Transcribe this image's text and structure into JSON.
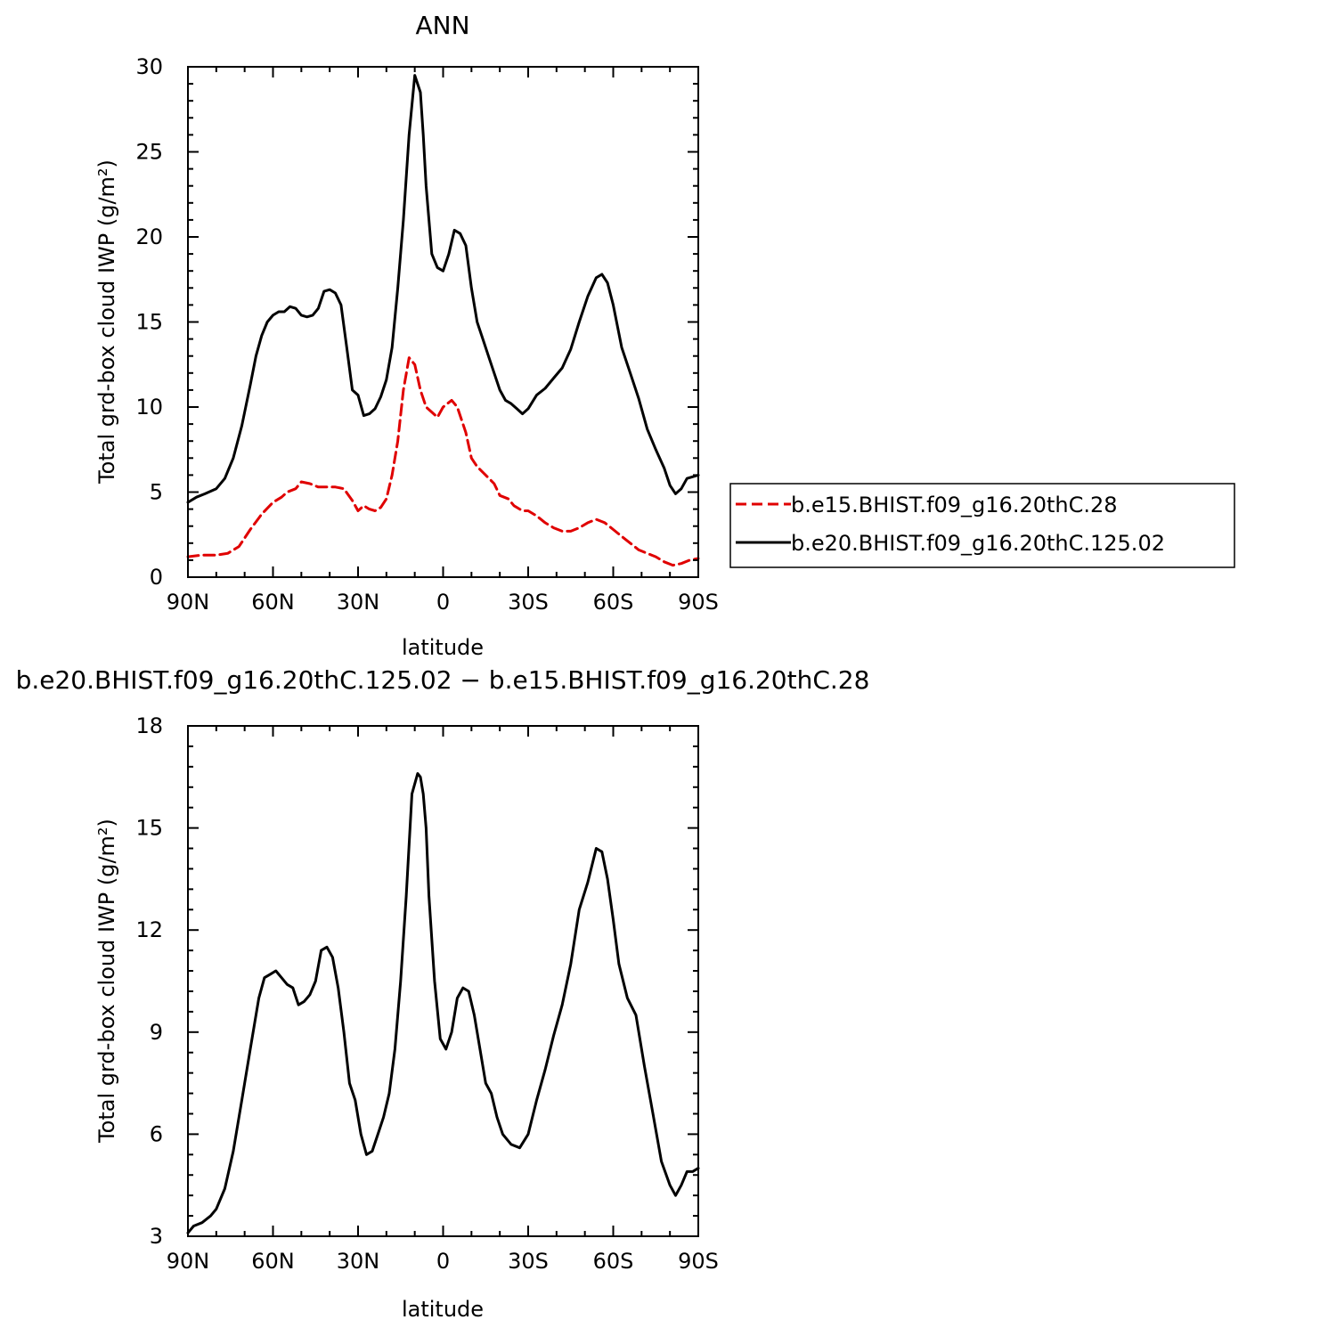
{
  "chart_data": [
    {
      "type": "line",
      "title": "ANN",
      "xlabel": "latitude",
      "ylabel": "Total grd-box cloud IWP (g/m²)",
      "xlim": [
        90,
        -90
      ],
      "ylim": [
        0,
        30
      ],
      "xticks": [
        90,
        60,
        30,
        0,
        -30,
        -60,
        -90
      ],
      "xtick_labels": [
        "90N",
        "60N",
        "30N",
        "0",
        "30S",
        "60S",
        "90S"
      ],
      "yticks": [
        0,
        5,
        10,
        15,
        20,
        25,
        30
      ],
      "ytick_labels": [
        "0",
        "5",
        "10",
        "15",
        "20",
        "25",
        "30"
      ],
      "legend_position": "right",
      "series": [
        {
          "name": "b.e15.BHIST.f09_g16.20thC.28",
          "color": "#e00000",
          "dash": true,
          "x": [
            90,
            85,
            80,
            76,
            72,
            68,
            64,
            60,
            57,
            55,
            52,
            50,
            47,
            44,
            41,
            38,
            35,
            32,
            30,
            28,
            26,
            24,
            22,
            20,
            18,
            16,
            14,
            12,
            10,
            8,
            6,
            4,
            2,
            0,
            -3,
            -5,
            -8,
            -10,
            -12,
            -15,
            -18,
            -20,
            -23,
            -25,
            -28,
            -30,
            -33,
            -36,
            -39,
            -42,
            -45,
            -48,
            -51,
            -54,
            -57,
            -60,
            -63,
            -66,
            -69,
            -72,
            -75,
            -78,
            -81,
            -84,
            -87,
            -90
          ],
          "y": [
            1.2,
            1.3,
            1.3,
            1.4,
            1.8,
            2.8,
            3.7,
            4.4,
            4.7,
            5.0,
            5.2,
            5.6,
            5.5,
            5.3,
            5.3,
            5.3,
            5.2,
            4.5,
            3.9,
            4.2,
            4.0,
            3.9,
            4.1,
            4.6,
            6.0,
            8.0,
            11.0,
            12.9,
            12.5,
            11.0,
            10.0,
            9.7,
            9.4,
            10.0,
            10.4,
            10.0,
            8.5,
            7.0,
            6.5,
            6.0,
            5.5,
            4.8,
            4.6,
            4.2,
            3.9,
            3.9,
            3.6,
            3.2,
            2.9,
            2.7,
            2.7,
            2.9,
            3.2,
            3.4,
            3.2,
            2.8,
            2.4,
            2.0,
            1.6,
            1.4,
            1.2,
            0.9,
            0.7,
            0.8,
            1.0,
            1.1
          ]
        },
        {
          "name": "b.e20.BHIST.f09_g16.20thC.125.02",
          "color": "#000000",
          "dash": false,
          "x": [
            90,
            87,
            84,
            80,
            77,
            74,
            71,
            68,
            66,
            64,
            62,
            60,
            58,
            56,
            54,
            52,
            50,
            48,
            46,
            44,
            42,
            40,
            38,
            36,
            34,
            32,
            30,
            28,
            26,
            24,
            22,
            20,
            18,
            16,
            14,
            12,
            10,
            8,
            7,
            6,
            5,
            4,
            2,
            0,
            -2,
            -4,
            -6,
            -8,
            -10,
            -12,
            -14,
            -16,
            -18,
            -20,
            -22,
            -24,
            -26,
            -28,
            -30,
            -33,
            -36,
            -39,
            -42,
            -45,
            -48,
            -51,
            -54,
            -56,
            -58,
            -60,
            -63,
            -66,
            -69,
            -72,
            -75,
            -78,
            -80,
            -82,
            -84,
            -86,
            -88,
            -90
          ],
          "y": [
            4.4,
            4.7,
            4.9,
            5.2,
            5.8,
            7.0,
            8.9,
            11.3,
            13.0,
            14.2,
            15.0,
            15.4,
            15.6,
            15.6,
            15.9,
            15.8,
            15.4,
            15.3,
            15.4,
            15.8,
            16.8,
            16.9,
            16.7,
            16.0,
            13.5,
            11.0,
            10.7,
            9.5,
            9.6,
            9.9,
            10.6,
            11.6,
            13.5,
            17.0,
            21.0,
            26.0,
            29.5,
            28.5,
            26.0,
            23.0,
            21.0,
            19.0,
            18.2,
            18.0,
            19.0,
            20.4,
            20.2,
            19.5,
            17.0,
            15.0,
            14.0,
            13.0,
            12.0,
            11.0,
            10.4,
            10.2,
            9.9,
            9.6,
            9.9,
            10.7,
            11.1,
            11.7,
            12.3,
            13.4,
            15.0,
            16.5,
            17.6,
            17.8,
            17.3,
            16.0,
            13.5,
            12.0,
            10.5,
            8.7,
            7.5,
            6.4,
            5.4,
            4.9,
            5.2,
            5.8,
            5.9,
            6.0
          ]
        }
      ]
    },
    {
      "type": "line",
      "title": "b.e20.BHIST.f09_g16.20thC.125.02 − b.e15.BHIST.f09_g16.20thC.28",
      "xlabel": "latitude",
      "ylabel": "Total grd-box cloud IWP (g/m²)",
      "xlim": [
        90,
        -90
      ],
      "ylim": [
        3,
        18
      ],
      "xticks": [
        90,
        60,
        30,
        0,
        -30,
        -60,
        -90
      ],
      "xtick_labels": [
        "90N",
        "60N",
        "30N",
        "0",
        "30S",
        "60S",
        "90S"
      ],
      "yticks": [
        3,
        6,
        9,
        12,
        15,
        18
      ],
      "ytick_labels": [
        "3",
        "6",
        "9",
        "12",
        "15",
        "18"
      ],
      "series": [
        {
          "color": "#000000",
          "dash": false,
          "x": [
            90,
            88,
            85,
            82,
            80,
            77,
            74,
            71,
            68,
            65,
            63,
            61,
            59,
            57,
            55,
            53,
            51,
            49,
            47,
            45,
            43,
            41,
            39,
            37,
            35,
            33,
            31,
            29,
            27,
            25,
            23,
            21,
            19,
            17,
            15,
            13,
            11,
            9,
            8,
            7,
            6,
            5,
            3,
            1,
            -1,
            -3,
            -5,
            -7,
            -9,
            -11,
            -13,
            -15,
            -17,
            -19,
            -21,
            -24,
            -27,
            -30,
            -33,
            -36,
            -39,
            -42,
            -45,
            -48,
            -51,
            -54,
            -56,
            -58,
            -60,
            -62,
            -65,
            -68,
            -71,
            -74,
            -77,
            -80,
            -82,
            -84,
            -86,
            -88,
            -90
          ],
          "y": [
            3.1,
            3.3,
            3.4,
            3.6,
            3.8,
            4.4,
            5.5,
            7.0,
            8.5,
            10.0,
            10.6,
            10.7,
            10.8,
            10.6,
            10.4,
            10.3,
            9.8,
            9.9,
            10.1,
            10.5,
            11.4,
            11.5,
            11.2,
            10.3,
            9.0,
            7.5,
            7.0,
            6.0,
            5.4,
            5.5,
            6.0,
            6.5,
            7.2,
            8.5,
            10.5,
            13.0,
            16.0,
            16.6,
            16.5,
            16.0,
            15.0,
            13.0,
            10.5,
            8.8,
            8.5,
            9.0,
            10.0,
            10.3,
            10.2,
            9.5,
            8.5,
            7.5,
            7.2,
            6.5,
            6.0,
            5.7,
            5.6,
            6.0,
            7.0,
            7.9,
            8.9,
            9.8,
            11.0,
            12.6,
            13.4,
            14.4,
            14.3,
            13.5,
            12.3,
            11.0,
            10.0,
            9.5,
            8.0,
            6.6,
            5.2,
            4.5,
            4.2,
            4.5,
            4.9,
            4.9,
            5.0
          ]
        }
      ]
    }
  ]
}
